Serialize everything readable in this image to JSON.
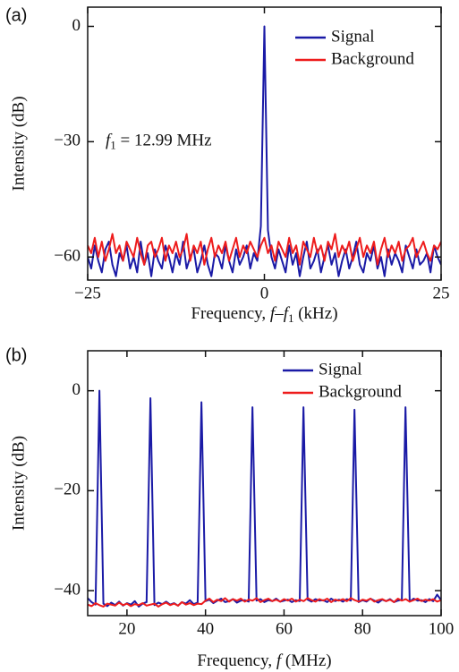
{
  "chart_data": [
    {
      "type": "line",
      "panel_label": "(a)",
      "ylabel": "Intensity (dB)",
      "xlabel": [
        {
          "text": "Frequency, "
        },
        {
          "text": "f",
          "italic": true
        },
        {
          "text": "–"
        },
        {
          "text": "f",
          "italic": true
        },
        {
          "text": "1",
          "sub": true
        },
        {
          "text": " (kHz)"
        }
      ],
      "annotation": [
        {
          "text": "f",
          "italic": true
        },
        {
          "text": "1",
          "sub": true
        },
        {
          "text": " = 12.99 MHz"
        }
      ],
      "xlim": [
        -25,
        25
      ],
      "ylim": [
        -66,
        5
      ],
      "xticks": [
        {
          "value": -25,
          "label": "−25"
        },
        0,
        25
      ],
      "yticks": [
        0,
        {
          "value": -30,
          "label": "−30"
        },
        {
          "value": -60,
          "label": "−60"
        }
      ],
      "legend": "upper right",
      "x": [
        -25,
        -24.5,
        -24,
        -23.5,
        -23,
        -22.5,
        -22,
        -21.5,
        -21,
        -20.5,
        -20,
        -19.5,
        -19,
        -18.5,
        -18,
        -17.5,
        -17,
        -16.5,
        -16,
        -15.5,
        -15,
        -14.5,
        -14,
        -13.5,
        -13,
        -12.5,
        -12,
        -11.5,
        -11,
        -10.5,
        -10,
        -9.5,
        -9,
        -8.5,
        -8,
        -7.5,
        -7,
        -6.5,
        -6,
        -5.5,
        -5,
        -4.5,
        -4,
        -3.5,
        -3,
        -2.5,
        -2,
        -1.5,
        -1,
        -0.5,
        0,
        0.5,
        1,
        1.5,
        2,
        2.5,
        3,
        3.5,
        4,
        4.5,
        5,
        5.5,
        6,
        6.5,
        7,
        7.5,
        8,
        8.5,
        9,
        9.5,
        10,
        10.5,
        11,
        11.5,
        12,
        12.5,
        13,
        13.5,
        14,
        14.5,
        15,
        15.5,
        16,
        16.5,
        17,
        17.5,
        18,
        18.5,
        19,
        19.5,
        20,
        20.5,
        21,
        21.5,
        22,
        22.5,
        23,
        23.5,
        24,
        24.5,
        25
      ],
      "series": [
        {
          "name": "Signal",
          "color": "#1a1aa6",
          "values": [
            -60,
            -63,
            -57,
            -61,
            -64,
            -58,
            -56,
            -62,
            -65,
            -59,
            -61,
            -57,
            -63,
            -60,
            -64,
            -56,
            -62,
            -59,
            -65,
            -58,
            -61,
            -63,
            -57,
            -60,
            -64,
            -59,
            -62,
            -56,
            -63,
            -60,
            -58,
            -64,
            -61,
            -57,
            -62,
            -65,
            -59,
            -60,
            -63,
            -57,
            -61,
            -64,
            -58,
            -62,
            -60,
            -57,
            -63,
            -59,
            -61,
            -52,
            0,
            -53,
            -60,
            -63,
            -58,
            -61,
            -64,
            -57,
            -62,
            -59,
            -65,
            -60,
            -56,
            -63,
            -61,
            -58,
            -64,
            -60,
            -57,
            -62,
            -59,
            -65,
            -61,
            -58,
            -63,
            -60,
            -56,
            -62,
            -64,
            -59,
            -61,
            -57,
            -63,
            -60,
            -65,
            -58,
            -62,
            -59,
            -61,
            -64,
            -57,
            -60,
            -63,
            -58,
            -62,
            -61,
            -59,
            -64,
            -57,
            -60,
            -62
          ]
        },
        {
          "name": "Background",
          "color": "#ee1c1c",
          "values": [
            -57,
            -59,
            -55,
            -60,
            -56,
            -61,
            -58,
            -54,
            -59,
            -57,
            -61,
            -56,
            -58,
            -60,
            -55,
            -59,
            -62,
            -57,
            -56,
            -60,
            -58,
            -55,
            -61,
            -57,
            -59,
            -56,
            -60,
            -58,
            -54,
            -61,
            -57,
            -59,
            -56,
            -62,
            -58,
            -55,
            -60,
            -57,
            -59,
            -56,
            -61,
            -58,
            -55,
            -60,
            -57,
            -59,
            -56,
            -58,
            -60,
            -57,
            -55,
            -59,
            -57,
            -61,
            -56,
            -58,
            -60,
            -55,
            -59,
            -57,
            -62,
            -56,
            -58,
            -60,
            -55,
            -59,
            -57,
            -61,
            -56,
            -58,
            -54,
            -60,
            -57,
            -59,
            -56,
            -61,
            -58,
            -55,
            -60,
            -57,
            -59,
            -56,
            -62,
            -58,
            -55,
            -60,
            -57,
            -59,
            -56,
            -61,
            -58,
            -57,
            -55,
            -60,
            -58,
            -56,
            -59,
            -61,
            -57,
            -58,
            -56
          ]
        }
      ]
    },
    {
      "type": "line",
      "panel_label": "(b)",
      "ylabel": "Intensity (dB)",
      "xlabel": [
        {
          "text": "Frequency, "
        },
        {
          "text": "f",
          "italic": true
        },
        {
          "text": " (MHz)"
        }
      ],
      "xlim": [
        10,
        100
      ],
      "ylim": [
        -45,
        8
      ],
      "xticks": [
        20,
        40,
        60,
        80,
        100
      ],
      "yticks": [
        0,
        {
          "value": -20,
          "label": "−20"
        },
        {
          "value": -40,
          "label": "−40"
        }
      ],
      "legend": "upper right",
      "x": [
        10,
        11,
        12,
        13,
        14,
        15,
        16,
        17,
        18,
        19,
        20,
        21,
        22,
        23,
        24,
        25,
        26,
        27,
        28,
        29,
        30,
        31,
        32,
        33,
        34,
        35,
        36,
        37,
        38,
        39,
        40,
        41,
        42,
        43,
        44,
        45,
        46,
        47,
        48,
        49,
        50,
        51,
        52,
        53,
        54,
        55,
        56,
        57,
        58,
        59,
        60,
        61,
        62,
        63,
        64,
        65,
        66,
        67,
        68,
        69,
        70,
        71,
        72,
        73,
        74,
        75,
        76,
        77,
        78,
        79,
        80,
        81,
        82,
        83,
        84,
        85,
        86,
        87,
        88,
        89,
        90,
        91,
        92,
        93,
        94,
        95,
        96,
        97,
        98,
        99,
        100
      ],
      "series": [
        {
          "name": "Signal",
          "color": "#1a1aa6",
          "x": [
            10,
            11,
            12,
            12.99,
            14,
            15,
            16,
            17,
            18,
            19,
            20,
            21,
            22,
            23,
            24,
            25,
            25.98,
            27,
            28,
            29,
            30,
            31,
            32,
            33,
            34,
            35,
            36,
            37,
            38,
            38.97,
            40,
            41,
            42,
            43,
            44,
            45,
            46,
            47,
            48,
            49,
            50,
            51,
            51.96,
            53,
            54,
            55,
            56,
            57,
            58,
            59,
            60,
            61,
            62,
            63,
            64,
            64.95,
            66,
            67,
            68,
            69,
            70,
            71,
            72,
            73,
            74,
            75,
            76,
            77,
            77.94,
            79,
            80,
            81,
            82,
            83,
            84,
            85,
            86,
            87,
            88,
            89,
            90,
            90.93,
            92,
            93,
            94,
            95,
            96,
            97,
            98,
            99,
            100
          ],
          "values": [
            -41.5,
            -42.3,
            -42.8,
            0,
            -42.6,
            -43.1,
            -42.4,
            -42.9,
            -42.2,
            -43.0,
            -42.5,
            -42.8,
            -42.1,
            -43.2,
            -42.6,
            -42.3,
            -1.5,
            -42.9,
            -42.4,
            -42.7,
            -42.2,
            -42.8,
            -42.5,
            -43.0,
            -42.3,
            -42.6,
            -41.9,
            -42.7,
            -42.4,
            -2.3,
            -42.1,
            -41.8,
            -42.5,
            -42.0,
            -41.6,
            -42.3,
            -42.1,
            -41.7,
            -42.4,
            -42.0,
            -41.9,
            -42.2,
            -3.3,
            -42.0,
            -41.7,
            -42.3,
            -41.9,
            -42.1,
            -41.6,
            -42.2,
            -42.0,
            -41.8,
            -42.3,
            -41.9,
            -42.1,
            -3.3,
            -41.8,
            -42.2,
            -41.7,
            -42.0,
            -41.9,
            -42.3,
            -41.6,
            -42.1,
            -41.8,
            -42.2,
            -41.7,
            -42.0,
            -3.8,
            -42.3,
            -41.9,
            -42.2,
            -41.6,
            -42.0,
            -42.4,
            -41.8,
            -42.1,
            -41.7,
            -42.3,
            -42.0,
            -41.8,
            -3.3,
            -42.2,
            -41.6,
            -42.0,
            -41.9,
            -42.3,
            -41.7,
            -42.1,
            -40.8,
            -41.9
          ]
        },
        {
          "name": "Background",
          "color": "#ee1c1c",
          "values": [
            -42.8,
            -43.1,
            -42.5,
            -42.9,
            -43.2,
            -42.6,
            -42.8,
            -43.0,
            -42.4,
            -42.9,
            -42.6,
            -43.1,
            -42.7,
            -42.9,
            -42.5,
            -43.0,
            -42.8,
            -42.6,
            -43.2,
            -42.7,
            -42.4,
            -42.9,
            -42.6,
            -43.0,
            -42.3,
            -42.8,
            -42.5,
            -42.9,
            -42.6,
            -42.7,
            -42.0,
            -41.6,
            -42.3,
            -41.8,
            -42.1,
            -41.5,
            -42.2,
            -41.7,
            -42.0,
            -41.6,
            -42.2,
            -41.8,
            -42.0,
            -41.5,
            -42.3,
            -41.9,
            -41.6,
            -42.1,
            -41.8,
            -42.2,
            -41.7,
            -42.0,
            -41.6,
            -42.2,
            -41.8,
            -42.1,
            -41.5,
            -41.9,
            -42.2,
            -41.7,
            -42.0,
            -41.6,
            -42.3,
            -41.8,
            -42.0,
            -41.7,
            -42.1,
            -41.5,
            -41.9,
            -42.2,
            -41.8,
            -42.0,
            -41.6,
            -42.2,
            -41.9,
            -41.7,
            -42.1,
            -41.8,
            -42.3,
            -41.6,
            -42.0,
            -41.7,
            -42.2,
            -41.9,
            -41.6,
            -42.1,
            -41.8,
            -42.0,
            -41.7,
            -42.2,
            -41.9
          ]
        }
      ]
    }
  ]
}
